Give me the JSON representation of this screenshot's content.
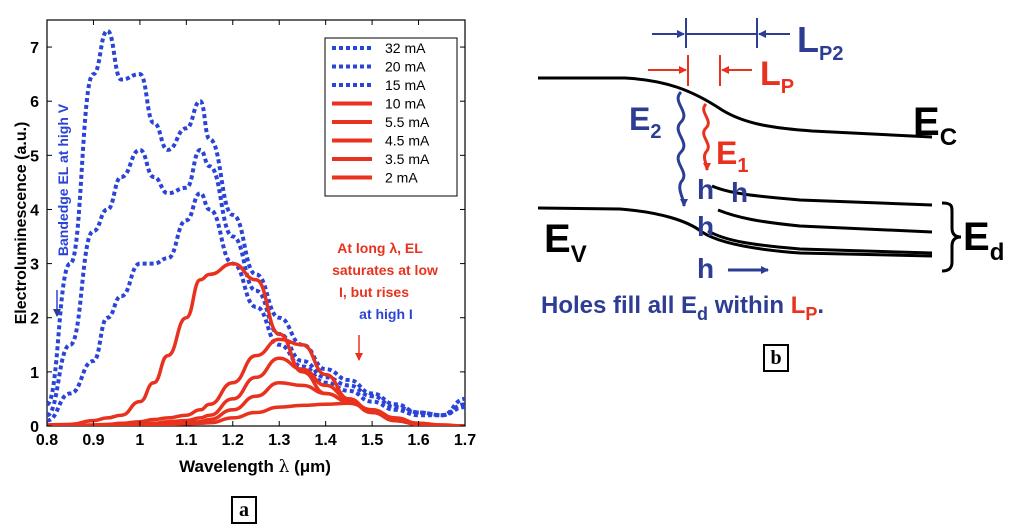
{
  "chart_data": {
    "type": "line",
    "xlabel_main": "Wavelength ",
    "xlabel_lambda": "λ",
    "xlabel_unit": " (μm)",
    "ylabel": "Electroluminescence (a.u.)",
    "xlim": [
      0.8,
      1.7
    ],
    "ylim": [
      0,
      7.5
    ],
    "xticks": [
      "0.8",
      "0.9",
      "1",
      "1.1",
      "1.2",
      "1.3",
      "1.4",
      "1.5",
      "1.6",
      "1.7"
    ],
    "yticks": [
      "0",
      "1",
      "2",
      "3",
      "4",
      "5",
      "6",
      "7"
    ],
    "x": [
      0.8,
      0.85,
      0.9,
      0.93,
      0.96,
      1.0,
      1.03,
      1.06,
      1.1,
      1.13,
      1.15,
      1.2,
      1.25,
      1.3,
      1.35,
      1.4,
      1.45,
      1.5,
      1.55,
      1.6,
      1.65,
      1.7
    ],
    "series": [
      {
        "name": "32 mA",
        "style": "dotted",
        "color": "#2b44d8",
        "values": [
          0.4,
          3.0,
          6.5,
          7.3,
          6.4,
          6.5,
          5.6,
          5.1,
          5.5,
          6.0,
          5.3,
          3.9,
          2.8,
          2.0,
          1.5,
          1.05,
          0.85,
          0.6,
          0.4,
          0.25,
          0.2,
          0.5
        ]
      },
      {
        "name": "20 mA",
        "style": "dotted",
        "color": "#2b44d8",
        "values": [
          0.2,
          1.5,
          3.6,
          4.0,
          4.6,
          5.1,
          4.6,
          4.3,
          4.4,
          5.1,
          4.8,
          3.5,
          2.5,
          1.7,
          1.2,
          0.9,
          0.75,
          0.55,
          0.35,
          0.25,
          0.2,
          0.4
        ]
      },
      {
        "name": "15 mA",
        "style": "dotted",
        "color": "#2b44d8",
        "values": [
          0.1,
          0.6,
          1.2,
          2.0,
          2.4,
          3.0,
          3.0,
          3.1,
          3.8,
          4.3,
          4.0,
          3.0,
          2.2,
          1.5,
          1.1,
          0.8,
          0.65,
          0.45,
          0.3,
          0.2,
          0.2,
          0.35
        ]
      },
      {
        "name": "10 mA",
        "style": "solid",
        "color": "#e8321e",
        "values": [
          0.02,
          0.03,
          0.1,
          0.15,
          0.2,
          0.45,
          0.8,
          1.3,
          2.0,
          2.7,
          2.8,
          3.0,
          2.7,
          1.7,
          1.0,
          0.6,
          0.45,
          0.3,
          0.15,
          0.05,
          0.02,
          0.0
        ]
      },
      {
        "name": "5.5 mA",
        "style": "solid",
        "color": "#e8321e",
        "values": [
          0.0,
          0.0,
          0.02,
          0.03,
          0.05,
          0.08,
          0.12,
          0.15,
          0.2,
          0.3,
          0.4,
          0.8,
          1.3,
          1.6,
          1.5,
          0.95,
          0.5,
          0.25,
          0.1,
          0.05,
          0.0,
          0.0
        ]
      },
      {
        "name": "4.5 mA",
        "style": "solid",
        "color": "#e8321e",
        "values": [
          0.0,
          0.0,
          0.0,
          0.0,
          0.02,
          0.03,
          0.05,
          0.08,
          0.1,
          0.15,
          0.2,
          0.5,
          0.9,
          1.25,
          1.05,
          0.75,
          0.5,
          0.25,
          0.1,
          0.03,
          0.0,
          0.0
        ]
      },
      {
        "name": "3.5 mA",
        "style": "solid",
        "color": "#e8321e",
        "values": [
          0.0,
          0.0,
          0.0,
          0.0,
          0.0,
          0.02,
          0.03,
          0.04,
          0.06,
          0.08,
          0.12,
          0.3,
          0.55,
          0.8,
          0.75,
          0.6,
          0.45,
          0.25,
          0.1,
          0.03,
          0.0,
          0.0
        ]
      },
      {
        "name": "2 mA",
        "style": "solid",
        "color": "#e8321e",
        "values": [
          0.0,
          0.0,
          0.0,
          0.0,
          0.0,
          0.0,
          0.02,
          0.03,
          0.04,
          0.05,
          0.06,
          0.15,
          0.25,
          0.35,
          0.38,
          0.4,
          0.42,
          0.3,
          0.12,
          0.03,
          0.0,
          0.0
        ]
      }
    ],
    "annotations": {
      "blue_vertical": "Bandedge EL at high V",
      "red_lines": [
        "At long λ, EL",
        "saturates at low",
        "I, but rises"
      ],
      "blue_lines": [
        "at high I"
      ]
    }
  },
  "panel_labels": {
    "a": "a",
    "b": "b"
  },
  "diagram": {
    "ec": {
      "main": "E",
      "sub": "C"
    },
    "ev": {
      "main": "E",
      "sub": "V"
    },
    "ed": {
      "main": "E",
      "sub": "d"
    },
    "e1": {
      "main": "E",
      "sub": "1"
    },
    "e2": {
      "main": "E",
      "sub": "2"
    },
    "lp": {
      "main": "L",
      "sub": "P"
    },
    "lp2": {
      "main": "L",
      "sub": "P2"
    },
    "hole": "h",
    "caption": {
      "prefix": "Holes fill all E",
      "sub1": "d",
      "middle": " within ",
      "lmain": "L",
      "lsub": "P",
      "end": "."
    }
  },
  "colors": {
    "blue": "#2b44d8",
    "red": "#e8321e",
    "navy": "#2e3d94",
    "black": "#000000"
  }
}
